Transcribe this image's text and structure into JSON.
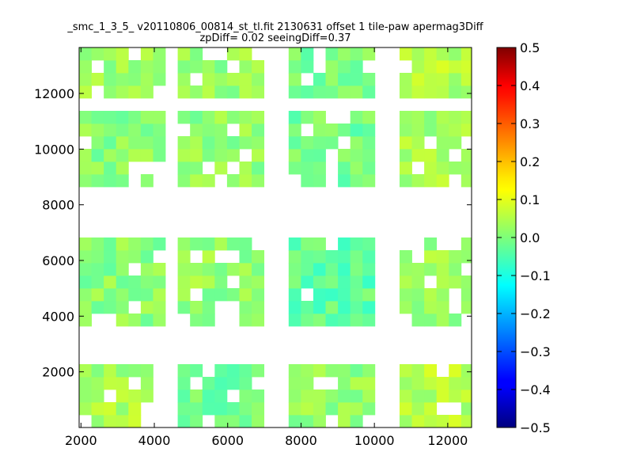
{
  "chart_data": {
    "type": "heatmap",
    "title_line1": "_smc_1_3_5_ v20110806_00814_st_tl.fit 2130631 offset 1 tile-paw apermag3Diff",
    "title_line2": "zpDiff= 0.02 seeingDiff=0.37",
    "xlabel": "",
    "ylabel": "",
    "xlim": [
      1950,
      12650
    ],
    "ylim": [
      0,
      13650
    ],
    "xticks": [
      "2000",
      "4000",
      "6000",
      "8000",
      "10000",
      "12000"
    ],
    "xtick_values": [
      2000,
      4000,
      6000,
      8000,
      10000,
      12000
    ],
    "yticks": [
      "2000",
      "4000",
      "6000",
      "8000",
      "10000",
      "12000"
    ],
    "ytick_values": [
      2000,
      4000,
      6000,
      8000,
      10000,
      12000
    ],
    "cell_size": [
      336,
      455
    ],
    "grid_origin": [
      1950,
      0
    ],
    "colorbar": {
      "colormap": "jet",
      "range": [
        -0.5,
        0.5
      ],
      "ticks": [
        "0.5",
        "0.4",
        "0.3",
        "0.2",
        "0.1",
        "0.0",
        "−0.1",
        "−0.2",
        "−0.3",
        "−0.4",
        "−0.5"
      ],
      "tick_values": [
        0.5,
        0.4,
        0.3,
        0.2,
        0.1,
        0.0,
        -0.1,
        -0.2,
        -0.3,
        -0.4,
        -0.5
      ]
    },
    "blocks": [
      {
        "cols": [
          0,
          5
        ],
        "rows": [
          0,
          4
        ],
        "value": 0.04
      },
      {
        "cols": [
          8,
          14
        ],
        "rows": [
          0,
          4
        ],
        "value": -0.01
      },
      {
        "cols": [
          17,
          23
        ],
        "rows": [
          0,
          4
        ],
        "value": 0.02
      },
      {
        "cols": [
          26,
          31
        ],
        "rows": [
          0,
          4
        ],
        "value": 0.05
      },
      {
        "cols": [
          0,
          6
        ],
        "rows": [
          8,
          14
        ],
        "value": 0.01
      },
      {
        "cols": [
          8,
          14
        ],
        "rows": [
          8,
          14
        ],
        "value": 0.02
      },
      {
        "cols": [
          17,
          23
        ],
        "rows": [
          8,
          14
        ],
        "value": -0.03
      },
      {
        "cols": [
          26,
          31
        ],
        "rows": [
          8,
          14
        ],
        "value": 0.03
      },
      {
        "cols": [
          0,
          6
        ],
        "rows": [
          19,
          24
        ],
        "value": 0.01
      },
      {
        "cols": [
          8,
          14
        ],
        "rows": [
          19,
          24
        ],
        "value": 0.02
      },
      {
        "cols": [
          17,
          23
        ],
        "rows": [
          19,
          24
        ],
        "value": -0.01
      },
      {
        "cols": [
          26,
          31
        ],
        "rows": [
          19,
          24
        ],
        "value": 0.04
      },
      {
        "cols": [
          0,
          6
        ],
        "rows": [
          26,
          29
        ],
        "value": 0.03
      },
      {
        "cols": [
          8,
          14
        ],
        "rows": [
          26,
          29
        ],
        "value": 0.02
      },
      {
        "cols": [
          17,
          23
        ],
        "rows": [
          26,
          29
        ],
        "value": 0.0
      },
      {
        "cols": [
          26,
          31
        ],
        "rows": [
          26,
          29
        ],
        "value": 0.05
      }
    ]
  }
}
